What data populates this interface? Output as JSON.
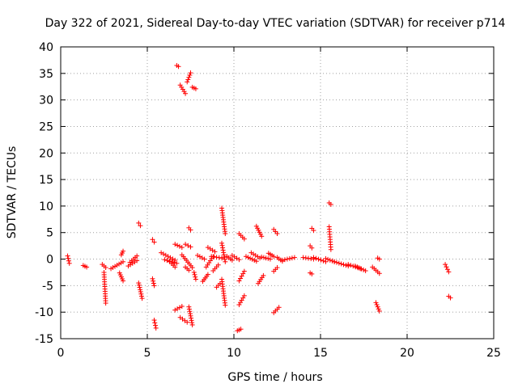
{
  "chart_data": {
    "type": "scatter",
    "title": "Day 322 of 2021, Sidereal Day-to-day VTEC variation (SDTVAR) for receiver p714",
    "xlabel": "GPS time / hours",
    "ylabel": "SDTVAR / TECUs",
    "xlim": [
      0,
      25
    ],
    "ylim": [
      -15,
      40
    ],
    "grid": true,
    "marker": "+",
    "marker_color": "#ff0000",
    "x_ticks": [
      "0",
      "5",
      "10",
      "15",
      "20",
      "25"
    ],
    "y_ticks": [
      "-15",
      "-10",
      "-5",
      "0",
      "5",
      "10",
      "15",
      "20",
      "25",
      "30",
      "35",
      "40"
    ],
    "segments": [
      {
        "x": [
          0.4,
          0.5
        ],
        "y": [
          0.6,
          -0.8
        ]
      },
      {
        "x": [
          1.3,
          1.5
        ],
        "y": [
          -1.2,
          -1.5
        ]
      },
      {
        "x": [
          2.4,
          2.6
        ],
        "y": [
          -1.0,
          -1.6
        ]
      },
      {
        "x": [
          2.5,
          2.6
        ],
        "y": [
          -2.5,
          -8.3
        ]
      },
      {
        "x": [
          2.9,
          3.6
        ],
        "y": [
          -1.8,
          -0.5
        ]
      },
      {
        "x": [
          3.4,
          3.6
        ],
        "y": [
          -2.6,
          -4.1
        ]
      },
      {
        "x": [
          3.5,
          3.6
        ],
        "y": [
          0.8,
          1.5
        ]
      },
      {
        "x": [
          3.9,
          4.4
        ],
        "y": [
          -1.3,
          -0.3
        ]
      },
      {
        "x": [
          4.0,
          4.4
        ],
        "y": [
          -0.6,
          0.6
        ]
      },
      {
        "x": [
          4.5,
          4.6
        ],
        "y": [
          6.8,
          6.3
        ]
      },
      {
        "x": [
          4.5,
          4.7
        ],
        "y": [
          -4.5,
          -7.4
        ]
      },
      {
        "x": [
          5.3,
          5.4
        ],
        "y": [
          3.7,
          3.2
        ]
      },
      {
        "x": [
          5.3,
          5.4
        ],
        "y": [
          -3.7,
          -5.0
        ]
      },
      {
        "x": [
          5.4,
          5.5
        ],
        "y": [
          -11.5,
          -13.0
        ]
      },
      {
        "x": [
          5.8,
          6.6
        ],
        "y": [
          1.2,
          -0.2
        ]
      },
      {
        "x": [
          6.0,
          6.7
        ],
        "y": [
          -0.1,
          -0.8
        ]
      },
      {
        "x": [
          6.3,
          6.6
        ],
        "y": [
          -0.5,
          -1.5
        ]
      },
      {
        "x": [
          6.6,
          7.0
        ],
        "y": [
          2.8,
          2.2
        ]
      },
      {
        "x": [
          6.6,
          7.0
        ],
        "y": [
          -9.6,
          -8.9
        ]
      },
      {
        "x": [
          6.7,
          6.8
        ],
        "y": [
          36.5,
          36.3
        ]
      },
      {
        "x": [
          6.9,
          7.2
        ],
        "y": [
          32.8,
          31.2
        ]
      },
      {
        "x": [
          6.9,
          7.3
        ],
        "y": [
          -11.0,
          -11.9
        ]
      },
      {
        "x": [
          7.0,
          7.6
        ],
        "y": [
          0.8,
          -1.6
        ]
      },
      {
        "x": [
          7.2,
          7.5
        ],
        "y": [
          2.8,
          2.3
        ]
      },
      {
        "x": [
          7.2,
          7.4
        ],
        "y": [
          -1.5,
          -2.1
        ]
      },
      {
        "x": [
          7.3,
          7.5
        ],
        "y": [
          33.4,
          35.1
        ]
      },
      {
        "x": [
          7.4,
          7.5
        ],
        "y": [
          5.9,
          5.5
        ]
      },
      {
        "x": [
          7.4,
          7.6
        ],
        "y": [
          -9.0,
          -12.4
        ]
      },
      {
        "x": [
          7.6,
          7.8
        ],
        "y": [
          32.4,
          32.1
        ]
      },
      {
        "x": [
          7.7,
          7.8
        ],
        "y": [
          -2.5,
          -3.8
        ]
      },
      {
        "x": [
          7.9,
          8.3
        ],
        "y": [
          0.7,
          0.0
        ]
      },
      {
        "x": [
          8.2,
          8.5
        ],
        "y": [
          -4.2,
          -2.9
        ]
      },
      {
        "x": [
          8.4,
          8.8
        ],
        "y": [
          -1.5,
          0.5
        ]
      },
      {
        "x": [
          8.5,
          8.9
        ],
        "y": [
          2.2,
          1.4
        ]
      },
      {
        "x": [
          8.7,
          9.3
        ],
        "y": [
          0.5,
          0.2
        ]
      },
      {
        "x": [
          8.8,
          9.1
        ],
        "y": [
          -2.2,
          -1.1
        ]
      },
      {
        "x": [
          9.0,
          9.2
        ],
        "y": [
          -5.3,
          -4.6
        ]
      },
      {
        "x": [
          9.3,
          9.5
        ],
        "y": [
          9.6,
          4.8
        ]
      },
      {
        "x": [
          9.3,
          9.5
        ],
        "y": [
          3.0,
          -0.5
        ]
      },
      {
        "x": [
          9.3,
          9.5
        ],
        "y": [
          -3.8,
          -8.7
        ]
      },
      {
        "x": [
          9.6,
          9.9
        ],
        "y": [
          0.5,
          -0.2
        ]
      },
      {
        "x": [
          9.9,
          10.3
        ],
        "y": [
          0.7,
          -0.1
        ]
      },
      {
        "x": [
          10.2,
          10.4
        ],
        "y": [
          -13.5,
          -13.2
        ]
      },
      {
        "x": [
          10.3,
          10.6
        ],
        "y": [
          -8.6,
          -6.9
        ]
      },
      {
        "x": [
          10.3,
          10.6
        ],
        "y": [
          -4.1,
          -2.3
        ]
      },
      {
        "x": [
          10.3,
          10.6
        ],
        "y": [
          4.8,
          3.8
        ]
      },
      {
        "x": [
          10.7,
          11.3
        ],
        "y": [
          0.5,
          -0.4
        ]
      },
      {
        "x": [
          11.0,
          11.5
        ],
        "y": [
          1.2,
          0.2
        ]
      },
      {
        "x": [
          11.3,
          11.6
        ],
        "y": [
          6.2,
          4.3
        ]
      },
      {
        "x": [
          11.4,
          11.7
        ],
        "y": [
          -4.6,
          -3.1
        ]
      },
      {
        "x": [
          11.6,
          12.1
        ],
        "y": [
          0.4,
          0.0
        ]
      },
      {
        "x": [
          12.0,
          12.3
        ],
        "y": [
          1.1,
          0.5
        ]
      },
      {
        "x": [
          12.3,
          12.6
        ],
        "y": [
          -10.1,
          -9.1
        ]
      },
      {
        "x": [
          12.3,
          12.5
        ],
        "y": [
          5.6,
          4.8
        ]
      },
      {
        "x": [
          12.3,
          12.5
        ],
        "y": [
          -2.3,
          -1.6
        ]
      },
      {
        "x": [
          12.5,
          12.8
        ],
        "y": [
          0.3,
          -0.4
        ]
      },
      {
        "x": [
          12.8,
          13.5
        ],
        "y": [
          -0.2,
          0.3
        ]
      },
      {
        "x": [
          14.0,
          14.6
        ],
        "y": [
          0.3,
          0.0
        ]
      },
      {
        "x": [
          14.4,
          14.5
        ],
        "y": [
          2.5,
          2.1
        ]
      },
      {
        "x": [
          14.5,
          14.6
        ],
        "y": [
          5.8,
          5.4
        ]
      },
      {
        "x": [
          14.4,
          14.5
        ],
        "y": [
          -2.6,
          -2.8
        ]
      },
      {
        "x": [
          14.6,
          15.3
        ],
        "y": [
          0.3,
          -0.5
        ]
      },
      {
        "x": [
          15.3,
          15.8
        ],
        "y": [
          0.1,
          -0.5
        ]
      },
      {
        "x": [
          15.5,
          15.6
        ],
        "y": [
          10.6,
          10.3
        ]
      },
      {
        "x": [
          15.5,
          15.6
        ],
        "y": [
          6.1,
          1.8
        ]
      },
      {
        "x": [
          15.8,
          16.6
        ],
        "y": [
          -0.5,
          -1.3
        ]
      },
      {
        "x": [
          16.6,
          17.3
        ],
        "y": [
          -1.0,
          -1.8
        ]
      },
      {
        "x": [
          17.0,
          17.6
        ],
        "y": [
          -1.3,
          -2.2
        ]
      },
      {
        "x": [
          18.0,
          18.4
        ],
        "y": [
          -1.5,
          -2.7
        ]
      },
      {
        "x": [
          18.2,
          18.4
        ],
        "y": [
          -8.2,
          -9.8
        ]
      },
      {
        "x": [
          18.3,
          18.4
        ],
        "y": [
          0.2,
          0.0
        ]
      },
      {
        "x": [
          22.2,
          22.4
        ],
        "y": [
          -1.0,
          -2.4
        ]
      },
      {
        "x": [
          22.4,
          22.5
        ],
        "y": [
          -7.0,
          -7.3
        ]
      }
    ]
  }
}
